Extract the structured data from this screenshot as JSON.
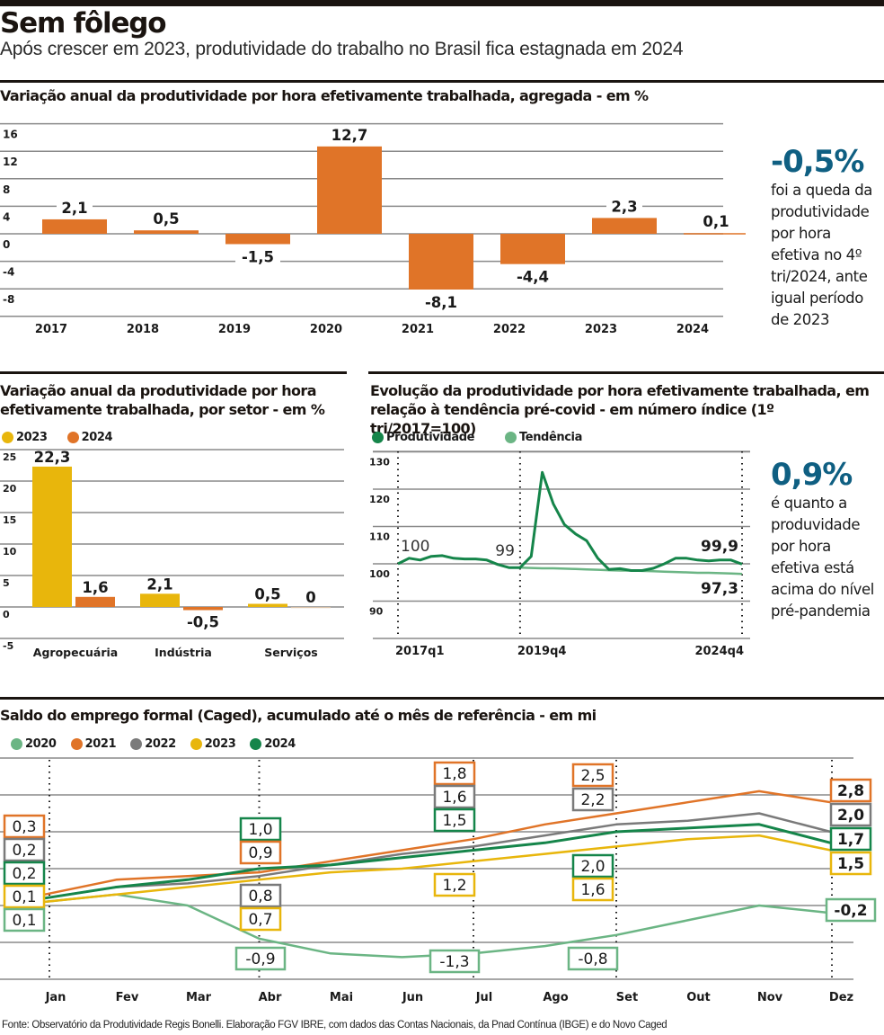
{
  "header": {
    "title": "Sem fôlego",
    "subtitle": "Após crescer em 2023, produtividade do trabalho no Brasil fica estagnada em 2024"
  },
  "colors": {
    "orange": "#e07428",
    "yellow": "#e8b60c",
    "dark_green": "#15854a",
    "light_green": "#6bb584",
    "gray": "#7a7a7a",
    "blue_note": "#0f5f82",
    "grid": "#8a8a8a"
  },
  "note1": {
    "big": "-0,5%",
    "lines": [
      "foi a queda da",
      "produtividade",
      "por hora",
      "efetiva no 4º",
      "tri/2024, ante",
      "igual período",
      "de 2023"
    ]
  },
  "note2": {
    "big": "0,9%",
    "lines": [
      "é quanto a",
      "produvidade",
      "por hora",
      "efetiva está",
      "acima do nível",
      "pré-pandemia"
    ]
  },
  "footer": "Fonte: Observatório da Produtividade Regis Bonelli. Elaboração FGV IBRE, com dados das Contas Nacionais, da Pnad Contínua (IBGE) e do Novo Caged",
  "chart_data": [
    {
      "id": "annual",
      "type": "bar",
      "title": "Variação anual da produtividade por hora efetivamente trabalhada, agregada - em %",
      "categories": [
        "2017",
        "2018",
        "2019",
        "2020",
        "2021",
        "2022",
        "2023",
        "2024"
      ],
      "values": [
        2.1,
        0.5,
        -1.5,
        12.7,
        -8.1,
        -4.4,
        2.3,
        0.1
      ],
      "labels": [
        "2,1",
        "0,5",
        "-1,5",
        "12,7",
        "-8,1",
        "-4,4",
        "2,3",
        "0,1"
      ],
      "yticks": [
        16,
        12,
        8,
        4,
        0,
        -4,
        -8
      ],
      "ytick_labels": [
        "16",
        "12",
        "8",
        "4",
        "0",
        "-4",
        "-8"
      ],
      "ylim": [
        -12,
        16
      ],
      "grid": true,
      "xlabel": "",
      "ylabel": ""
    },
    {
      "id": "sector",
      "type": "bar",
      "title": "Variação anual da produtividade por hora efetivamente trabalhada, por setor - em %",
      "categories": [
        "Agropecuária",
        "Indústria",
        "Serviços"
      ],
      "series": [
        {
          "name": "2023",
          "color": "#e8b60c",
          "values": [
            22.3,
            2.1,
            0.5
          ],
          "labels": [
            "22,3",
            "2,1",
            "0,5"
          ]
        },
        {
          "name": "2024",
          "color": "#e07428",
          "values": [
            1.6,
            -0.5,
            0
          ],
          "labels": [
            "1,6",
            "-0,5",
            "0"
          ]
        }
      ],
      "yticks": [
        25,
        20,
        15,
        10,
        5,
        0,
        -5
      ],
      "ytick_labels": [
        "25",
        "20",
        "15",
        "10",
        "5",
        "0",
        "-5"
      ],
      "ylim": [
        -5,
        25
      ],
      "legend": "top-left",
      "grid": true
    },
    {
      "id": "index",
      "type": "line",
      "title": "Evolução da produtividade por hora efetivamente trabalhada, em relação à tendência pré-covid - em número índice (1º tri/2017=100)",
      "x_ticks": [
        "2017q1",
        "2019q4",
        "2024q4"
      ],
      "x_tick_index": [
        0,
        11,
        31
      ],
      "n_points": 32,
      "series": [
        {
          "name": "Produtividade",
          "color": "#15854a",
          "values": [
            100,
            101.5,
            101,
            102,
            102.2,
            101.5,
            101.3,
            101.3,
            101,
            99.8,
            99,
            99,
            102,
            124.5,
            116,
            110.5,
            108,
            106.2,
            101.5,
            98.5,
            98.7,
            98.2,
            98.2,
            98.8,
            100,
            101.5,
            101.5,
            101,
            100.8,
            101,
            101,
            99.9
          ]
        },
        {
          "name": "Tendência",
          "color": "#6bb584",
          "start_index": 11,
          "values": [
            99,
            98.9,
            98.8,
            98.8,
            98.7,
            98.6,
            98.5,
            98.4,
            98.3,
            98.2,
            98.2,
            98.1,
            98,
            97.9,
            97.8,
            97.7,
            97.6,
            97.6,
            97.5,
            97.4,
            97.3
          ]
        }
      ],
      "annotations": [
        {
          "text": "100",
          "index": 0,
          "series": "Produtividade",
          "bold": false
        },
        {
          "text": "99",
          "index": 11,
          "series": "Produtividade",
          "bold": false
        },
        {
          "text": "99,9",
          "index": 31,
          "series": "Produtividade",
          "bold": true
        },
        {
          "text": "97,3",
          "index": 31,
          "series": "Tendência",
          "bold": true
        }
      ],
      "yticks": [
        130,
        120,
        110,
        100,
        90
      ],
      "ytick_labels": [
        "130",
        "120",
        "110",
        "100",
        "90"
      ],
      "ylim": [
        80,
        132
      ],
      "legend": "top-left",
      "grid": true
    },
    {
      "id": "caged",
      "type": "line",
      "title": "Saldo do emprego formal (Caged), acumulado até o mês de referência - em mi",
      "x": [
        "Jan",
        "Fev",
        "Mar",
        "Abr",
        "Mai",
        "Jun",
        "Jul",
        "Ago",
        "Set",
        "Out",
        "Nov",
        "Dez"
      ],
      "marked_months": [
        0,
        3,
        6,
        8,
        11
      ],
      "series": [
        {
          "name": "2020",
          "color": "#6bb584",
          "values": [
            0.1,
            0.3,
            0.0,
            -0.9,
            -1.3,
            -1.4,
            -1.3,
            -1.1,
            -0.8,
            -0.4,
            0.0,
            -0.2
          ]
        },
        {
          "name": "2021",
          "color": "#e07428",
          "values": [
            0.3,
            0.7,
            0.8,
            0.9,
            1.2,
            1.5,
            1.8,
            2.2,
            2.5,
            2.8,
            3.1,
            2.8
          ]
        },
        {
          "name": "2022",
          "color": "#7a7a7a",
          "values": [
            0.2,
            0.5,
            0.6,
            0.8,
            1.1,
            1.4,
            1.6,
            1.9,
            2.2,
            2.3,
            2.5,
            2.0
          ]
        },
        {
          "name": "2023",
          "color": "#e8b60c",
          "values": [
            0.1,
            0.3,
            0.5,
            0.7,
            0.9,
            1.0,
            1.2,
            1.4,
            1.6,
            1.8,
            1.9,
            1.5
          ]
        },
        {
          "name": "2024",
          "color": "#15854a",
          "values": [
            0.2,
            0.5,
            0.7,
            1.0,
            1.1,
            1.3,
            1.5,
            1.7,
            2.0,
            2.1,
            2.2,
            1.7
          ]
        }
      ],
      "value_boxes": [
        {
          "month": 0,
          "items": [
            {
              "series": "2021",
              "text": "0,3"
            },
            {
              "series": "2022",
              "text": "0,2"
            },
            {
              "series": "2024",
              "text": "0,2"
            },
            {
              "series": "2023",
              "text": "0,1"
            },
            {
              "series": "2020",
              "text": "0,1"
            }
          ]
        },
        {
          "month": 3,
          "items_top": [
            {
              "series": "2024",
              "text": "1,0"
            },
            {
              "series": "2021",
              "text": "0,9"
            }
          ],
          "items_bottom": [
            {
              "series": "2022",
              "text": "0,8"
            },
            {
              "series": "2023",
              "text": "0,7"
            }
          ],
          "items_low": [
            {
              "series": "2020",
              "text": "-0,9"
            }
          ]
        },
        {
          "month": 6,
          "items_top": [
            {
              "series": "2021",
              "text": "1,8"
            },
            {
              "series": "2022",
              "text": "1,6"
            },
            {
              "series": "2024",
              "text": "1,5"
            }
          ],
          "items_bottom": [
            {
              "series": "2023",
              "text": "1,2"
            }
          ],
          "items_low": [
            {
              "series": "2020",
              "text": "-1,3"
            }
          ]
        },
        {
          "month": 8,
          "items_top": [
            {
              "series": "2021",
              "text": "2,5"
            },
            {
              "series": "2022",
              "text": "2,2"
            }
          ],
          "items_bottom": [
            {
              "series": "2024",
              "text": "2,0"
            },
            {
              "series": "2023",
              "text": "1,6"
            }
          ],
          "items_low": [
            {
              "series": "2020",
              "text": "-0,8"
            }
          ]
        },
        {
          "month": 11,
          "items": [
            {
              "series": "2021",
              "text": "2,8"
            },
            {
              "series": "2022",
              "text": "2,0"
            },
            {
              "series": "2024",
              "text": "1,7"
            },
            {
              "series": "2023",
              "text": "1,5"
            }
          ],
          "items_low": [
            {
              "series": "2020",
              "text": "-0,2"
            }
          ]
        }
      ],
      "ylim": [
        -2,
        4
      ],
      "yticks": [
        4,
        3,
        2,
        1,
        0,
        -1,
        -2
      ],
      "legend": "top-left",
      "grid": true
    }
  ]
}
